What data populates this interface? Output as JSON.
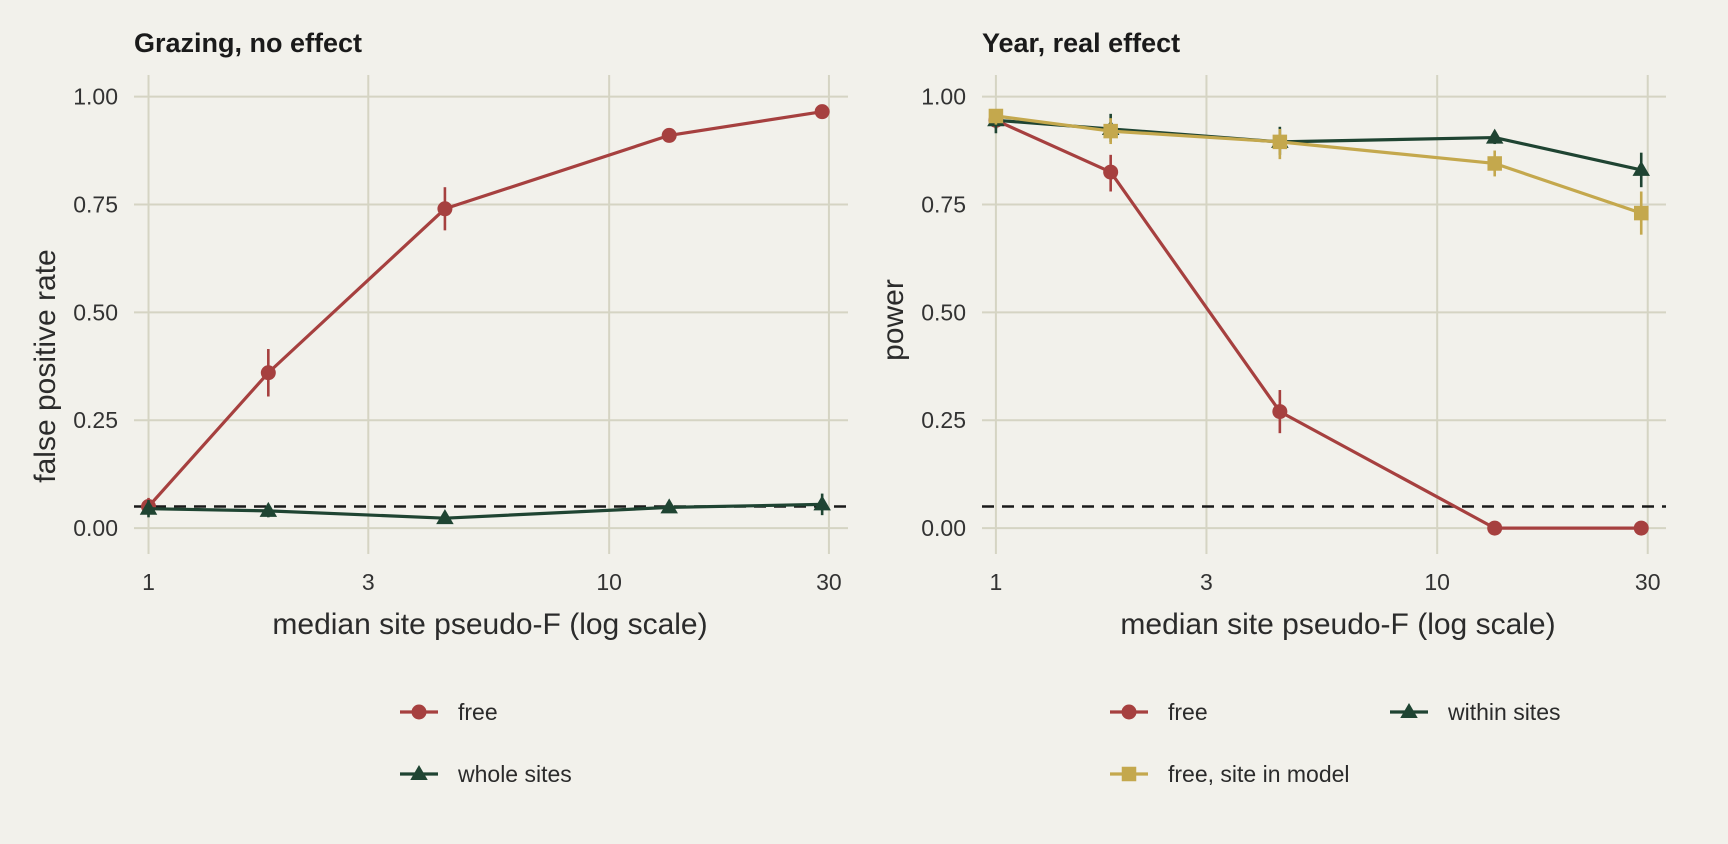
{
  "chart_data": [
    {
      "type": "line",
      "title": "Grazing, no effect",
      "xlabel": "median site pseudo-F (log scale)",
      "ylabel": "false positive rate",
      "x_scale": "log",
      "xlim": [
        0.93,
        33
      ],
      "ylim": [
        -0.06,
        1.05
      ],
      "xticks": [
        1,
        3,
        10,
        30
      ],
      "xtick_labels": [
        "1",
        "3",
        "10",
        "30"
      ],
      "yticks": [
        0,
        0.25,
        0.5,
        0.75,
        1.0
      ],
      "ytick_labels": [
        "0.00",
        "0.25",
        "0.50",
        "0.75",
        "1.00"
      ],
      "reference_line": 0.05,
      "grid": true,
      "legend_position": "bottom",
      "series": [
        {
          "name": "free",
          "color": "#a6403f",
          "marker": "circle",
          "x": [
            1.0,
            1.82,
            4.4,
            13.5,
            29.0
          ],
          "y": [
            0.05,
            0.36,
            0.74,
            0.91,
            0.965
          ],
          "ylow": [
            0.03,
            0.305,
            0.69,
            0.905,
            0.955
          ],
          "yhigh": [
            0.07,
            0.415,
            0.79,
            0.915,
            0.975
          ]
        },
        {
          "name": "whole sites",
          "color": "#1f4432",
          "marker": "triangle",
          "x": [
            1.0,
            1.82,
            4.4,
            13.5,
            29.0
          ],
          "y": [
            0.045,
            0.04,
            0.023,
            0.048,
            0.055
          ],
          "ylow": [
            0.025,
            0.025,
            0.015,
            0.04,
            0.03
          ],
          "yhigh": [
            0.065,
            0.055,
            0.03,
            0.056,
            0.08
          ]
        }
      ]
    },
    {
      "type": "line",
      "title": "Year, real effect",
      "xlabel": "median site pseudo-F (log scale)",
      "ylabel": "power",
      "x_scale": "log",
      "xlim": [
        0.93,
        33
      ],
      "ylim": [
        -0.06,
        1.05
      ],
      "xticks": [
        1,
        3,
        10,
        30
      ],
      "xtick_labels": [
        "1",
        "3",
        "10",
        "30"
      ],
      "yticks": [
        0,
        0.25,
        0.5,
        0.75,
        1.0
      ],
      "ytick_labels": [
        "0.00",
        "0.25",
        "0.50",
        "0.75",
        "1.00"
      ],
      "reference_line": 0.05,
      "grid": true,
      "legend_position": "bottom",
      "series": [
        {
          "name": "free",
          "color": "#a6403f",
          "marker": "circle",
          "x": [
            1.0,
            1.82,
            4.4,
            13.5,
            29.0
          ],
          "y": [
            0.945,
            0.825,
            0.27,
            0.0,
            0.0
          ],
          "ylow": [
            0.925,
            0.78,
            0.22,
            0.0,
            0.0
          ],
          "yhigh": [
            0.965,
            0.865,
            0.32,
            0.0,
            0.0
          ]
        },
        {
          "name": "within sites",
          "color": "#1f4432",
          "marker": "triangle",
          "x": [
            1.0,
            1.82,
            4.4,
            13.5,
            29.0
          ],
          "y": [
            0.945,
            0.925,
            0.895,
            0.905,
            0.83
          ],
          "ylow": [
            0.915,
            0.895,
            0.865,
            0.89,
            0.79
          ],
          "yhigh": [
            0.96,
            0.96,
            0.93,
            0.92,
            0.87
          ]
        },
        {
          "name": "free, site in model",
          "color": "#c4a84d",
          "marker": "square",
          "x": [
            1.0,
            1.82,
            4.4,
            13.5,
            29.0
          ],
          "y": [
            0.955,
            0.92,
            0.895,
            0.845,
            0.73
          ],
          "ylow": [
            0.935,
            0.89,
            0.855,
            0.815,
            0.68
          ],
          "yhigh": [
            0.97,
            0.95,
            0.925,
            0.875,
            0.78
          ]
        }
      ]
    }
  ]
}
